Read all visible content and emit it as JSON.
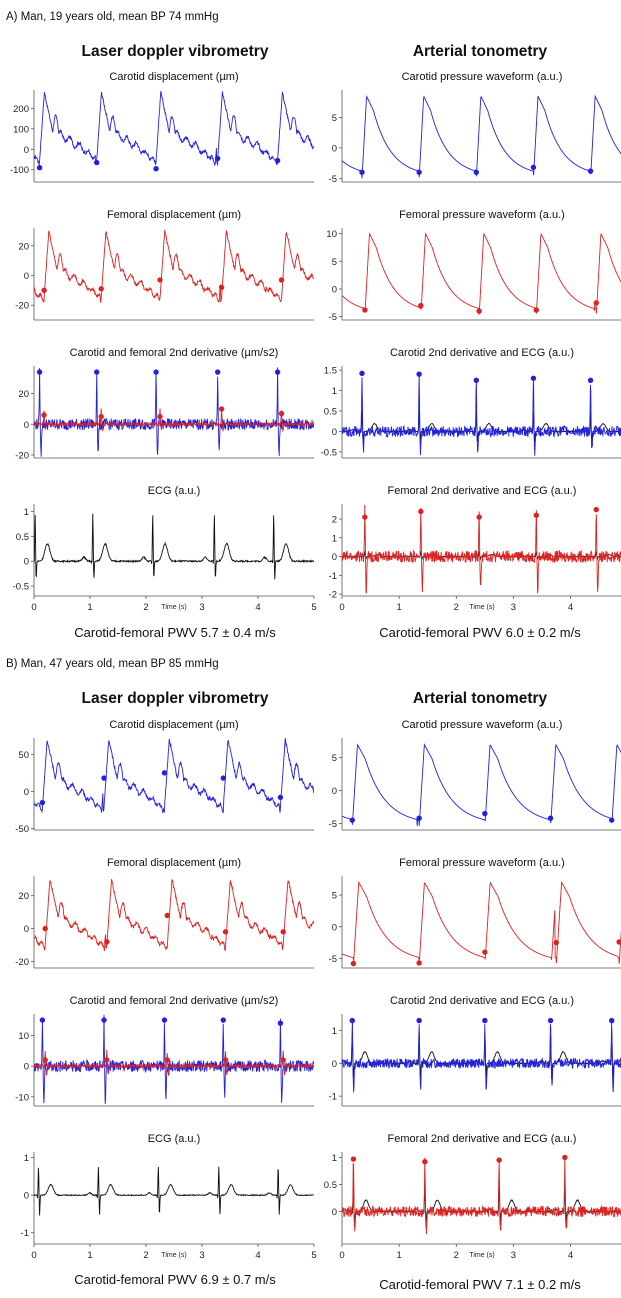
{
  "sections": [
    {
      "heading": "A)  Man, 19 years old, mean BP 74 mmHg",
      "columns": [
        {
          "title": "Laser doppler vibrometry",
          "pwv": "Carotid-femoral PWV 5.7 ± 0.4 m/s"
        },
        {
          "title": "Arterial tonometry",
          "pwv": "Carotid-femoral PWV 6.0 ± 0.2 m/s"
        }
      ]
    },
    {
      "heading": "B)  Man, 47 years old, mean BP 85 mmHg",
      "columns": [
        {
          "title": "Laser doppler vibrometry",
          "pwv": "Carotid-femoral PWV 6.9 ± 0.7 m/s"
        },
        {
          "title": "Arterial tonometry",
          "pwv": "Carotid-femoral PWV 7.1 ± 0.2 m/s"
        }
      ]
    }
  ],
  "colors": {
    "carotid": "#2222dd",
    "femoral": "#dd2222",
    "ecg": "#111111",
    "axis": "#555555"
  },
  "chart_data": [
    {
      "type": "line",
      "panel": "A-ldv-1",
      "title": "Carotid displacement (µm)",
      "xlim": [
        0,
        5
      ],
      "ylim": [
        -160,
        290
      ],
      "yticks": [
        -100,
        0,
        100,
        200
      ],
      "ytick_labels": [
        "-100",
        "0",
        "100",
        "200"
      ],
      "series": [
        {
          "kind": "displacement",
          "color": "carotid",
          "peak": 280,
          "trough": -150,
          "markers": [
            -90,
            -65,
            -95,
            -45,
            -55
          ]
        }
      ],
      "marker_times": [
        0.1,
        1.12,
        2.18,
        3.28,
        4.35
      ]
    },
    {
      "type": "line",
      "panel": "A-ldv-2",
      "title": "Femoral displacement (µm)",
      "xlim": [
        0,
        5
      ],
      "ylim": [
        -30,
        32
      ],
      "yticks": [
        -20,
        0,
        20
      ],
      "ytick_labels": [
        "-20",
        "0",
        "20"
      ],
      "series": [
        {
          "kind": "displacement",
          "color": "femoral",
          "peak": 30,
          "trough": -28,
          "markers": [
            -10,
            -9,
            -3,
            -8,
            -3
          ]
        }
      ],
      "marker_times": [
        0.18,
        1.2,
        2.25,
        3.35,
        4.42
      ]
    },
    {
      "type": "line",
      "panel": "A-ldv-3",
      "title": "Carotid and femoral 2nd derivative (µm/s2)",
      "xlim": [
        0,
        5
      ],
      "ylim": [
        -22,
        38
      ],
      "yticks": [
        -20,
        0,
        20
      ],
      "ytick_labels": [
        "-20",
        "0",
        "20"
      ],
      "series": [
        {
          "kind": "derivative",
          "color": "carotid",
          "peak": 34,
          "trough": -20,
          "markers": [
            34,
            34,
            34,
            34,
            34
          ]
        },
        {
          "kind": "derivative",
          "color": "femoral",
          "peak": 10,
          "trough": -4,
          "markers": [
            6,
            5,
            5,
            10,
            7
          ]
        }
      ],
      "marker_times": [
        0.1,
        1.12,
        2.18,
        3.28,
        4.35
      ],
      "femoral_marker_times": [
        0.18,
        1.2,
        2.25,
        3.35,
        4.42
      ]
    },
    {
      "type": "line",
      "panel": "A-ldv-4",
      "title": "ECG (a.u.)",
      "xlim": [
        0,
        5
      ],
      "ylim": [
        -0.7,
        1.15
      ],
      "yticks": [
        -0.5,
        0,
        0.5,
        1
      ],
      "ytick_labels": [
        "-0.5",
        "0",
        "0.5",
        "1"
      ],
      "xticks": [
        0,
        1,
        2,
        3,
        4,
        5
      ],
      "xtick_labels": [
        "0",
        "1",
        "2",
        "3",
        "4",
        "5"
      ],
      "xlabel": "Time (s)",
      "series": [
        {
          "kind": "ecg",
          "color": "ecg",
          "peak": 1.0,
          "trough": -0.55
        }
      ],
      "beat_times": [
        0.02,
        1.05,
        2.12,
        3.22,
        4.28
      ]
    },
    {
      "type": "line",
      "panel": "A-at-1",
      "title": "Carotid pressure waveform (a.u.)",
      "xlim": [
        0,
        4.9
      ],
      "ylim": [
        -5.6,
        9.5
      ],
      "yticks": [
        -5,
        0,
        5
      ],
      "ytick_labels": [
        "-5",
        "0",
        "5"
      ],
      "series": [
        {
          "kind": "pressure",
          "color": "carotid",
          "peak": 8.5,
          "trough": -5,
          "markers": [
            -4,
            -4,
            -4,
            -3.2,
            -3.8
          ]
        }
      ],
      "marker_times": [
        0.35,
        1.35,
        2.35,
        3.35,
        4.35
      ]
    },
    {
      "type": "line",
      "panel": "A-at-2",
      "title": "Femoral pressure waveform (a.u.)",
      "xlim": [
        0,
        4.9
      ],
      "ylim": [
        -5.6,
        11
      ],
      "yticks": [
        -5,
        0,
        5,
        10
      ],
      "ytick_labels": [
        "-5",
        "0",
        "5",
        "10"
      ],
      "series": [
        {
          "kind": "pressure",
          "color": "femoral",
          "peak": 10,
          "trough": -4.8,
          "markers": [
            -3.8,
            -3,
            -4,
            -3.8,
            -2.5
          ]
        }
      ],
      "marker_times": [
        0.4,
        1.38,
        2.4,
        3.4,
        4.45
      ]
    },
    {
      "type": "line",
      "panel": "A-at-3",
      "title": "Carotid 2nd derivative and ECG (a.u.)",
      "xlim": [
        0,
        4.9
      ],
      "ylim": [
        -0.65,
        1.6
      ],
      "yticks": [
        -0.5,
        0,
        0.5,
        1,
        1.5
      ],
      "ytick_labels": [
        "-0.5",
        "0",
        "0.5",
        "1",
        "1.5"
      ],
      "series": [
        {
          "kind": "ecg",
          "color": "ecg",
          "peak": 0.55,
          "trough": -0.1
        },
        {
          "kind": "derivative",
          "color": "carotid",
          "peak": 1.4,
          "trough": -0.5,
          "markers": [
            1.42,
            1.4,
            1.25,
            1.3,
            1.25
          ]
        }
      ],
      "marker_times": [
        0.35,
        1.35,
        2.35,
        3.35,
        4.35
      ]
    },
    {
      "type": "line",
      "panel": "A-at-4",
      "title": "Femoral 2nd derivative and ECG (a.u.)",
      "xlim": [
        0,
        4.9
      ],
      "ylim": [
        -2.1,
        2.8
      ],
      "yticks": [
        -2,
        -1,
        0,
        1,
        2
      ],
      "ytick_labels": [
        "-2",
        "-1",
        "0",
        "1",
        "2"
      ],
      "xticks": [
        0,
        1,
        2,
        3,
        4
      ],
      "xtick_labels": [
        "0",
        "1",
        "2",
        "3",
        "4"
      ],
      "xlabel": "Time (s)",
      "series": [
        {
          "kind": "ecg",
          "color": "ecg",
          "peak": 0.3,
          "trough": -0.2
        },
        {
          "kind": "derivative",
          "color": "femoral",
          "peak": 2.5,
          "trough": -1.9,
          "markers": [
            2.1,
            2.4,
            2.1,
            2.2,
            2.5
          ]
        }
      ],
      "marker_times": [
        0.4,
        1.38,
        2.4,
        3.4,
        4.45
      ]
    },
    {
      "type": "line",
      "panel": "B-ldv-1",
      "title": "Carotid displacement (µm)",
      "xlim": [
        0,
        5
      ],
      "ylim": [
        -52,
        72
      ],
      "yticks": [
        -50,
        0,
        50
      ],
      "ytick_labels": [
        "-50",
        "0",
        "50"
      ],
      "series": [
        {
          "kind": "displacement",
          "color": "carotid",
          "peak": 70,
          "trough": -48,
          "markers": [
            -15,
            18,
            25,
            18,
            -8
          ]
        }
      ],
      "marker_times": [
        0.15,
        1.25,
        2.33,
        3.38,
        4.4
      ]
    },
    {
      "type": "line",
      "panel": "B-ldv-2",
      "title": "Femoral displacement (µm)",
      "xlim": [
        0,
        5
      ],
      "ylim": [
        -24,
        32
      ],
      "yticks": [
        -20,
        0,
        20
      ],
      "ytick_labels": [
        "-20",
        "0",
        "20"
      ],
      "series": [
        {
          "kind": "displacement",
          "color": "femoral",
          "peak": 30,
          "trough": -22,
          "markers": [
            0,
            -8,
            8,
            -2,
            -2
          ]
        }
      ],
      "marker_times": [
        0.2,
        1.3,
        2.38,
        3.42,
        4.45
      ]
    },
    {
      "type": "line",
      "panel": "B-ldv-3",
      "title": "Carotid and femoral 2nd derivative (µm/s2)",
      "xlim": [
        0,
        5
      ],
      "ylim": [
        -13,
        17
      ],
      "yticks": [
        -10,
        0,
        10
      ],
      "ytick_labels": [
        "-10",
        "0",
        "10"
      ],
      "series": [
        {
          "kind": "derivative",
          "color": "carotid",
          "peak": 15,
          "trough": -12,
          "markers": [
            15,
            15,
            15,
            15,
            14
          ]
        },
        {
          "kind": "derivative",
          "color": "femoral",
          "peak": 5,
          "trough": -3,
          "markers": [
            2,
            2,
            2,
            2,
            2
          ]
        }
      ],
      "marker_times": [
        0.15,
        1.25,
        2.33,
        3.38,
        4.4
      ],
      "femoral_marker_times": [
        0.2,
        1.3,
        2.38,
        3.42,
        4.45
      ]
    },
    {
      "type": "line",
      "panel": "B-ldv-4",
      "title": "ECG (a.u.)",
      "xlim": [
        0,
        5
      ],
      "ylim": [
        -1.3,
        1.15
      ],
      "yticks": [
        -1,
        0,
        1
      ],
      "ytick_labels": [
        "-1",
        "0",
        "1"
      ],
      "xticks": [
        0,
        1,
        2,
        3,
        4,
        5
      ],
      "xtick_labels": [
        "0",
        "1",
        "2",
        "3",
        "4",
        "5"
      ],
      "xlabel": "Time (s)",
      "series": [
        {
          "kind": "ecg",
          "color": "ecg",
          "peak": 0.8,
          "trough": -1.2
        }
      ],
      "beat_times": [
        0.08,
        1.15,
        2.22,
        3.3,
        4.36
      ]
    },
    {
      "type": "line",
      "panel": "B-at-1",
      "title": "Carotid pressure waveform (a.u.)",
      "xlim": [
        0,
        4.9
      ],
      "ylim": [
        -6,
        8
      ],
      "yticks": [
        -5,
        0,
        5
      ],
      "ytick_labels": [
        "-5",
        "0",
        "5"
      ],
      "series": [
        {
          "kind": "pressure",
          "color": "carotid",
          "peak": 7,
          "trough": -5.5,
          "markers": [
            -4.5,
            -4.2,
            -3.5,
            -4.2,
            -4.5
          ]
        }
      ],
      "marker_times": [
        0.18,
        1.35,
        2.5,
        3.65,
        4.72
      ]
    },
    {
      "type": "line",
      "panel": "B-at-2",
      "title": "Femoral pressure waveform (a.u.)",
      "xlim": [
        0,
        4.9
      ],
      "ylim": [
        -6.5,
        8
      ],
      "yticks": [
        -5,
        0,
        5
      ],
      "ytick_labels": [
        "-5",
        "0",
        "5"
      ],
      "series": [
        {
          "kind": "pressure",
          "color": "femoral",
          "peak": 7,
          "trough": -6,
          "markers": [
            -5.8,
            -5.7,
            -4,
            -2.5,
            -2.4
          ]
        }
      ],
      "marker_times": [
        0.2,
        1.35,
        2.5,
        3.75,
        4.85
      ]
    },
    {
      "type": "line",
      "panel": "B-at-3",
      "title": "Carotid 2nd derivative and ECG (a.u.)",
      "xlim": [
        0,
        4.9
      ],
      "ylim": [
        -1.3,
        1.5
      ],
      "yticks": [
        -1,
        0,
        1
      ],
      "ytick_labels": [
        "-1",
        "0",
        "1"
      ],
      "series": [
        {
          "kind": "ecg",
          "color": "ecg",
          "peak": 1.0,
          "trough": -1.2
        },
        {
          "kind": "derivative",
          "color": "carotid",
          "peak": 1.3,
          "trough": -0.8,
          "markers": [
            1.3,
            1.3,
            1.3,
            1.3,
            1.3
          ]
        }
      ],
      "marker_times": [
        0.18,
        1.35,
        2.5,
        3.65,
        4.72
      ]
    },
    {
      "type": "line",
      "panel": "B-at-4",
      "title": "Femoral 2nd derivative and ECG (a.u.)",
      "xlim": [
        0,
        4.9
      ],
      "ylim": [
        -0.6,
        1.1
      ],
      "yticks": [
        0,
        0.5,
        1
      ],
      "ytick_labels": [
        "0",
        "0.5",
        "1"
      ],
      "xticks": [
        0,
        1,
        2,
        3,
        4
      ],
      "xtick_labels": [
        "0",
        "1",
        "2",
        "3",
        "4"
      ],
      "xlabel": "Time (s)",
      "series": [
        {
          "kind": "ecg",
          "color": "ecg",
          "peak": 0.6,
          "trough": -0.5
        },
        {
          "kind": "derivative",
          "color": "femoral",
          "peak": 1.0,
          "trough": -0.4,
          "markers": [
            0.97,
            0.92,
            0.95,
            1.0
          ]
        }
      ],
      "marker_times": [
        0.2,
        1.45,
        2.75,
        3.9
      ]
    }
  ]
}
